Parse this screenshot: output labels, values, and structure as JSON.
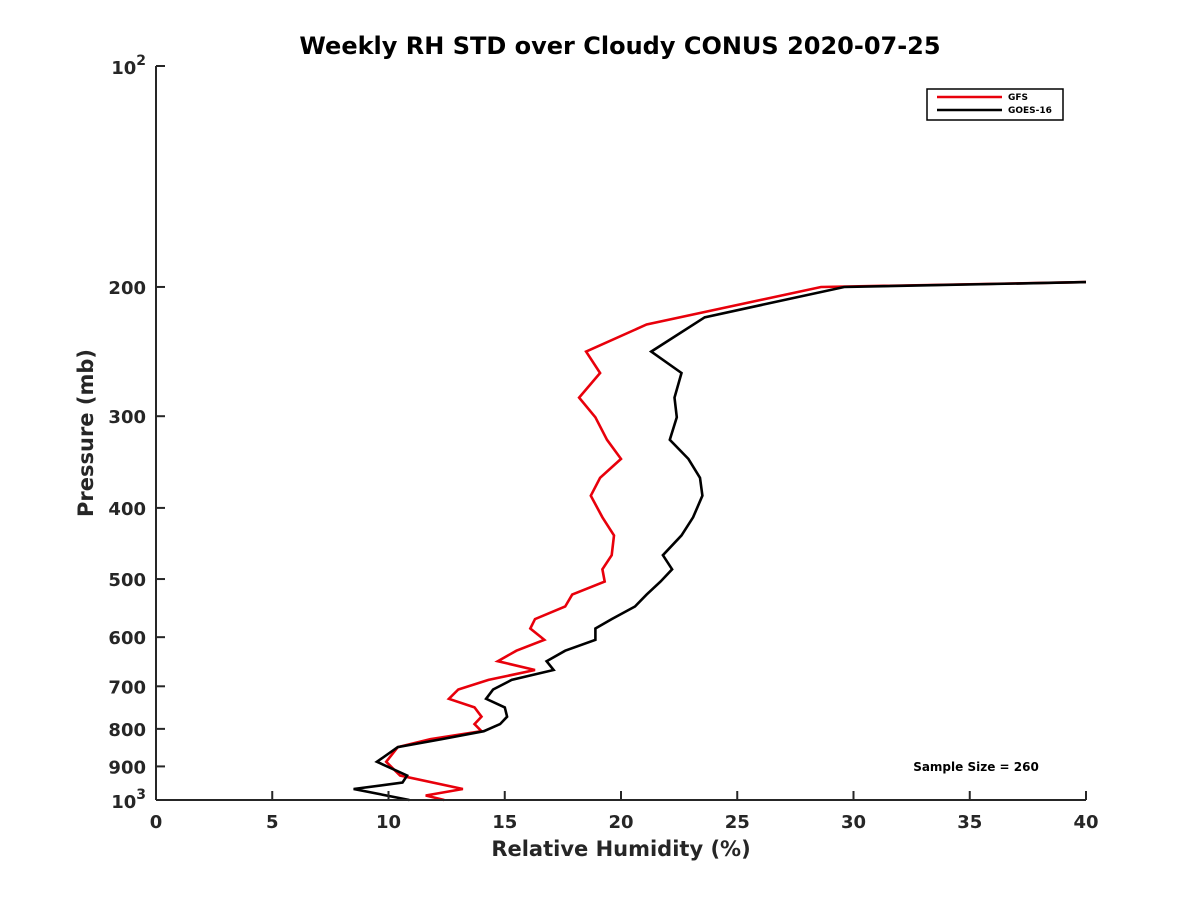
{
  "chart_data": {
    "type": "line",
    "title": "Weekly RH STD over Cloudy CONUS 2020-07-25",
    "xlabel": "Relative Humidity (%)",
    "ylabel": "Pressure (mb)",
    "xlim": [
      0,
      40
    ],
    "ylim": [
      100,
      1000
    ],
    "y_scale": "log",
    "y_reversed": true,
    "grid": false,
    "legend_position": "top-right",
    "x_ticks": [
      0,
      5,
      10,
      15,
      20,
      25,
      30,
      35,
      40
    ],
    "x_tick_labels": [
      "0",
      "5",
      "10",
      "15",
      "20",
      "25",
      "30",
      "35",
      "40"
    ],
    "y_ticks": [
      200,
      300,
      400,
      500,
      600,
      700,
      800,
      900
    ],
    "y_tick_labels": [
      "200",
      "300",
      "400",
      "500",
      "600",
      "700",
      "800",
      "900"
    ],
    "y_decade_ticks": [
      {
        "value": 100,
        "base": "10",
        "exponent": "2"
      },
      {
        "value": 1000,
        "base": "10",
        "exponent": "3"
      }
    ],
    "annotation": "Sample Size = 260",
    "series": [
      {
        "name": "GFS",
        "color": "#e8000b",
        "points": [
          [
            40.0,
            197
          ],
          [
            28.6,
            200
          ],
          [
            21.1,
            225
          ],
          [
            18.5,
            245
          ],
          [
            19.1,
            262
          ],
          [
            18.2,
            283
          ],
          [
            18.9,
            301
          ],
          [
            19.4,
            323
          ],
          [
            20.0,
            343
          ],
          [
            19.1,
            364
          ],
          [
            18.7,
            385
          ],
          [
            19.2,
            412
          ],
          [
            19.7,
            436
          ],
          [
            19.6,
            464
          ],
          [
            19.2,
            485
          ],
          [
            19.3,
            504
          ],
          [
            17.9,
            525
          ],
          [
            17.6,
            545
          ],
          [
            16.3,
            567
          ],
          [
            16.1,
            584
          ],
          [
            16.7,
            605
          ],
          [
            15.5,
            626
          ],
          [
            14.7,
            647
          ],
          [
            16.3,
            665
          ],
          [
            14.3,
            686
          ],
          [
            13.0,
            707
          ],
          [
            12.6,
            728
          ],
          [
            13.7,
            748
          ],
          [
            14.0,
            770
          ],
          [
            13.7,
            788
          ],
          [
            14.0,
            806
          ],
          [
            11.8,
            826
          ],
          [
            10.4,
            847
          ],
          [
            9.9,
            887
          ],
          [
            10.5,
            926
          ],
          [
            13.2,
            966
          ],
          [
            11.6,
            986
          ],
          [
            12.4,
            1000
          ]
        ]
      },
      {
        "name": "GOES-16",
        "color": "#000000",
        "points": [
          [
            40.0,
            197
          ],
          [
            29.6,
            200
          ],
          [
            23.6,
            220
          ],
          [
            21.3,
            245
          ],
          [
            22.6,
            262
          ],
          [
            22.3,
            283
          ],
          [
            22.4,
            301
          ],
          [
            22.1,
            323
          ],
          [
            22.9,
            343
          ],
          [
            23.4,
            364
          ],
          [
            23.5,
            385
          ],
          [
            23.1,
            412
          ],
          [
            22.6,
            436
          ],
          [
            21.8,
            464
          ],
          [
            22.2,
            485
          ],
          [
            21.7,
            504
          ],
          [
            21.1,
            525
          ],
          [
            20.6,
            545
          ],
          [
            19.6,
            567
          ],
          [
            18.9,
            584
          ],
          [
            18.9,
            605
          ],
          [
            17.6,
            626
          ],
          [
            16.8,
            647
          ],
          [
            17.1,
            665
          ],
          [
            15.3,
            686
          ],
          [
            14.5,
            707
          ],
          [
            14.2,
            728
          ],
          [
            15.0,
            748
          ],
          [
            15.1,
            770
          ],
          [
            14.8,
            788
          ],
          [
            14.1,
            806
          ],
          [
            12.3,
            826
          ],
          [
            10.4,
            847
          ],
          [
            9.5,
            887
          ],
          [
            10.8,
            926
          ],
          [
            10.6,
            947
          ],
          [
            8.5,
            966
          ],
          [
            10.9,
            1000
          ]
        ]
      }
    ]
  }
}
